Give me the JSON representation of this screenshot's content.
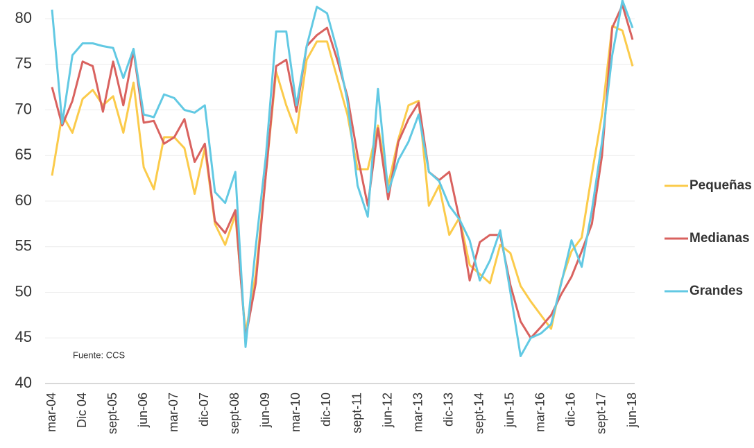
{
  "chart_data": {
    "type": "line",
    "categories": [
      "mar-04",
      null,
      null,
      "Dic 04",
      null,
      null,
      "sept-05",
      null,
      null,
      "jun-06",
      null,
      null,
      "mar-07",
      null,
      null,
      "dic-07",
      null,
      null,
      "sept-08",
      null,
      null,
      "jun-09",
      null,
      null,
      "mar-10",
      null,
      null,
      "dic-10",
      null,
      null,
      "sept-11",
      null,
      null,
      "jun-12",
      null,
      null,
      "mar-13",
      null,
      null,
      "dic-13",
      null,
      null,
      "sept-14",
      null,
      null,
      "jun-15",
      null,
      null,
      "mar-16",
      null,
      null,
      "dic-16",
      null,
      null,
      "sept-17",
      null,
      null,
      "jun-18"
    ],
    "series": [
      {
        "name": "Pequeñas",
        "color": "#fbcb4b",
        "values": [
          62.8,
          69.5,
          67.5,
          71.2,
          72.2,
          70.5,
          71.5,
          67.5,
          73,
          63.7,
          61.3,
          67,
          67,
          65.8,
          60.8,
          65.8,
          57.5,
          55.2,
          58.5,
          45.5,
          52,
          63,
          74.2,
          70.5,
          67.5,
          75.5,
          77.5,
          77.5,
          73.5,
          69.5,
          63.5,
          63.5,
          68.3,
          61.7,
          66.8,
          70.5,
          71,
          59.5,
          61.7,
          56.3,
          58.2,
          53,
          52,
          51,
          55.2,
          54.3,
          50.7,
          49,
          47.5,
          46,
          51.2,
          54.5,
          56,
          63,
          69.5,
          79.2,
          78.7,
          74.8
        ]
      },
      {
        "name": "Medianas",
        "color": "#d9625f",
        "values": [
          72.5,
          68.3,
          71,
          75.3,
          74.8,
          69.8,
          75.3,
          70.5,
          76.5,
          68.6,
          68.8,
          66.3,
          67,
          69,
          64.3,
          66.3,
          57.8,
          56.5,
          59,
          45,
          51,
          63,
          74.8,
          75.5,
          69.8,
          77,
          78.2,
          79,
          75.5,
          71.5,
          65,
          59.5,
          68,
          60.2,
          66.5,
          69,
          70.8,
          63.2,
          62.3,
          63.2,
          58,
          51.3,
          55.5,
          56.3,
          56.3,
          50.8,
          46.8,
          45,
          46.2,
          47.5,
          49.8,
          51.7,
          54.5,
          57.5,
          65,
          79,
          81.5,
          77.7
        ]
      },
      {
        "name": "Grandes",
        "color": "#62c9e3",
        "values": [
          81,
          68.5,
          76,
          77.3,
          77.3,
          77,
          76.8,
          73.5,
          76.7,
          69.5,
          69.2,
          71.7,
          71.3,
          70,
          69.7,
          70.5,
          61,
          59.8,
          63.2,
          44,
          55,
          65,
          78.6,
          78.6,
          70.5,
          77,
          81.3,
          80.6,
          76.5,
          71,
          61.7,
          58.3,
          72.3,
          61,
          64.5,
          66.5,
          69.5,
          63.2,
          62.2,
          59.5,
          58,
          55.7,
          51.3,
          53.5,
          56.8,
          50,
          43,
          45,
          45.5,
          46.5,
          51,
          55.7,
          52.8,
          59,
          66.5,
          76,
          82,
          79
        ]
      }
    ],
    "ylim": [
      40,
      82
    ],
    "yticks": [
      40,
      45,
      50,
      55,
      60,
      65,
      70,
      75,
      80
    ],
    "grid": true,
    "annotation": "Fuente: CCS",
    "legend": "right"
  }
}
